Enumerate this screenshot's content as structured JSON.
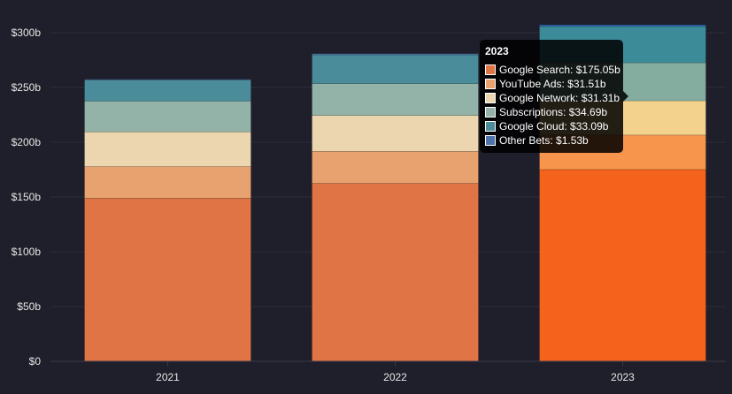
{
  "chart_data": {
    "type": "bar",
    "stacked": true,
    "categories": [
      "2021",
      "2022",
      "2023"
    ],
    "ylim": [
      0,
      300
    ],
    "yticks": [
      "$0",
      "$50b",
      "$100b",
      "$150b",
      "$200b",
      "$250b",
      "$300b"
    ],
    "ytick_values": [
      0,
      50,
      100,
      150,
      200,
      250,
      300
    ],
    "grid": true,
    "series": [
      {
        "name": "Google Search",
        "color": "#e07444",
        "highlight": "#f5621c",
        "values": [
          148.95,
          162.45,
          175.05
        ]
      },
      {
        "name": "YouTube Ads",
        "color": "#e8a26f",
        "highlight": "#f7954c",
        "values": [
          28.85,
          29.24,
          31.51
        ]
      },
      {
        "name": "Google Network",
        "color": "#ebd6b0",
        "highlight": "#f2d28d",
        "values": [
          31.7,
          32.78,
          31.31
        ]
      },
      {
        "name": "Subscriptions",
        "color": "#94b3a8",
        "highlight": "#84ada0",
        "values": [
          28.03,
          29.06,
          34.69
        ]
      },
      {
        "name": "Google Cloud",
        "color": "#4b8c9a",
        "highlight": "#3c8b99",
        "values": [
          19.21,
          26.28,
          33.09
        ]
      },
      {
        "name": "Other Bets",
        "color": "#4c74a8",
        "highlight": "#2f68b0",
        "values": [
          0.75,
          1.07,
          1.53
        ]
      }
    ],
    "highlighted_category": "2023"
  },
  "tooltip": {
    "title": "2023",
    "rows": [
      {
        "label": "Google Search: $175.05b",
        "color": "#e07444"
      },
      {
        "label": "YouTube Ads: $31.51b",
        "color": "#e8a26f"
      },
      {
        "label": "Google Network: $31.31b",
        "color": "#ebd6b0"
      },
      {
        "label": "Subscriptions: $34.69b",
        "color": "#94b3a8"
      },
      {
        "label": "Google Cloud: $33.09b",
        "color": "#4b8c9a"
      },
      {
        "label": "Other Bets: $1.53b",
        "color": "#4c74a8"
      }
    ]
  },
  "colors": {
    "background": "#1f1f2b",
    "grid": "#2d2d3a",
    "text": "#e6e6e6"
  }
}
